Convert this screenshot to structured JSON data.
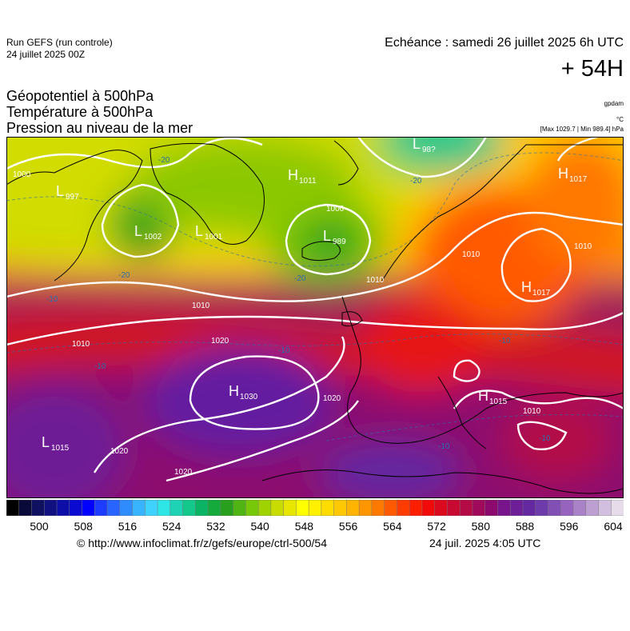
{
  "header": {
    "run_title": "Run GEFS (run controle)",
    "run_date": "24 juillet 2025 00Z",
    "forecast_time": "Echéance : samedi 26 juillet 2025 6h UTC",
    "lead_time": "+ 54H"
  },
  "params": {
    "line1": "Géopotentiel à 500hPa",
    "line2": "Température à 500hPa",
    "line3": "Pression au niveau de la mer"
  },
  "units": {
    "geopotential": "gpdam",
    "temperature": "°C",
    "pressure_range": "[Max 1029.7 | Min 989.4] hPa"
  },
  "map": {
    "pressure_centers": [
      {
        "type": "L",
        "value": "997"
      },
      {
        "type": "L",
        "value": "1002"
      },
      {
        "type": "L",
        "value": "1001"
      },
      {
        "type": "H",
        "value": "1011"
      },
      {
        "type": "L",
        "value": "989"
      },
      {
        "type": "L",
        "value": "98?"
      },
      {
        "type": "H",
        "value": "1017"
      },
      {
        "type": "H",
        "value": "1017"
      },
      {
        "type": "H",
        "value": "1030"
      },
      {
        "type": "L",
        "value": "1015"
      },
      {
        "type": "H",
        "value": "1015"
      }
    ],
    "isobar_labels": [
      "1000",
      "1010",
      "1010",
      "1010",
      "1020",
      "1020",
      "1020",
      "1020",
      "1010",
      "1010",
      "1000",
      "1010"
    ],
    "isotherm_labels": [
      "-20",
      "-20",
      "-20",
      "-20",
      "-10",
      "-10",
      "-10",
      "-10",
      "-10",
      "-10"
    ]
  },
  "colorbar": {
    "ticks": [
      "500",
      "508",
      "516",
      "524",
      "532",
      "540",
      "548",
      "556",
      "564",
      "572",
      "580",
      "588",
      "596",
      "604"
    ],
    "colors": [
      "#000000",
      "#0a0a3a",
      "#101060",
      "#101080",
      "#0d0da8",
      "#0a0ad0",
      "#0000ff",
      "#1e3cff",
      "#2864ff",
      "#2e8cff",
      "#38b4ff",
      "#40d2ff",
      "#2ee6e6",
      "#1ed2b4",
      "#14c88c",
      "#0ab464",
      "#14aa3c",
      "#28a01e",
      "#50b414",
      "#78c80a",
      "#a0d200",
      "#c8dc00",
      "#e6e600",
      "#ffff00",
      "#fff000",
      "#ffdc00",
      "#ffc800",
      "#ffb400",
      "#ff9600",
      "#ff7800",
      "#ff5a00",
      "#ff3c00",
      "#ff1e00",
      "#f00a0a",
      "#dc0a1e",
      "#c80a32",
      "#b40a46",
      "#a00a5a",
      "#8c0a6e",
      "#78148c",
      "#6e1e96",
      "#6428a0",
      "#6e3caa",
      "#8250b4",
      "#9664be",
      "#aa82c8",
      "#be9fd2",
      "#d2bede",
      "#e6dcea"
    ],
    "accent_colors": {
      "hot": "#d2141e",
      "cold": "#22a01e",
      "purple": "#641ea0"
    }
  },
  "footer": {
    "credit": "© http://www.infoclimat.fr/z/gefs/europe/ctrl-500/54",
    "timestamp": "24 juil. 2025  4:05 UTC"
  }
}
